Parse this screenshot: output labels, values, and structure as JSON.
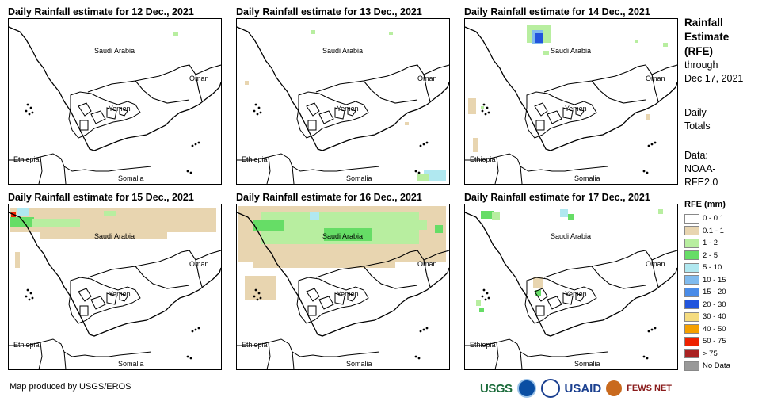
{
  "panels": [
    {
      "title": "Daily Rainfall estimate for 12 Dec., 2021"
    },
    {
      "title": "Daily Rainfall estimate for 13 Dec., 2021"
    },
    {
      "title": "Daily Rainfall estimate for 14 Dec., 2021"
    },
    {
      "title": "Daily Rainfall estimate for 15 Dec., 2021"
    },
    {
      "title": "Daily Rainfall estimate for 16 Dec., 2021"
    },
    {
      "title": "Daily Rainfall estimate for 17 Dec., 2021"
    }
  ],
  "map_labels": {
    "saudi_arabia": "Saudi Arabia",
    "oman": "Oman",
    "yemen": "Yemen",
    "ethiopia": "Ethiopia",
    "somalia": "Somalia"
  },
  "side_info": {
    "title_line1": "Rainfall",
    "title_line2": "Estimate",
    "title_line3": "(RFE)",
    "through": "through",
    "date": "Dec 17, 2021",
    "daily_line1": "Daily",
    "daily_line2": "Totals",
    "data_line1": "Data:",
    "data_line2": "NOAA-",
    "data_line3": "RFE2.0"
  },
  "legend": {
    "title": "RFE (mm)",
    "items": [
      {
        "label": "0 - 0.1",
        "color": "#ffffff"
      },
      {
        "label": "0.1 - 1",
        "color": "#e8d5b0"
      },
      {
        "label": "1 - 2",
        "color": "#b8eea0"
      },
      {
        "label": "2 - 5",
        "color": "#66dd66"
      },
      {
        "label": "5 - 10",
        "color": "#b0e8f0"
      },
      {
        "label": "10 - 15",
        "color": "#80bbee"
      },
      {
        "label": "15 - 20",
        "color": "#4a8ce8"
      },
      {
        "label": "20 - 30",
        "color": "#2255dd"
      },
      {
        "label": "30 - 40",
        "color": "#f5dc80"
      },
      {
        "label": "40 - 50",
        "color": "#f5a000"
      },
      {
        "label": "50 - 75",
        "color": "#ee2200"
      },
      {
        "label": "> 75",
        "color": "#aa2222"
      },
      {
        "label": "No Data",
        "color": "#999999"
      }
    ]
  },
  "credit": "Map produced by USGS/EROS",
  "logos": {
    "usgs": "USGS",
    "usaid": "USAID",
    "fews": "FEWS NET"
  }
}
